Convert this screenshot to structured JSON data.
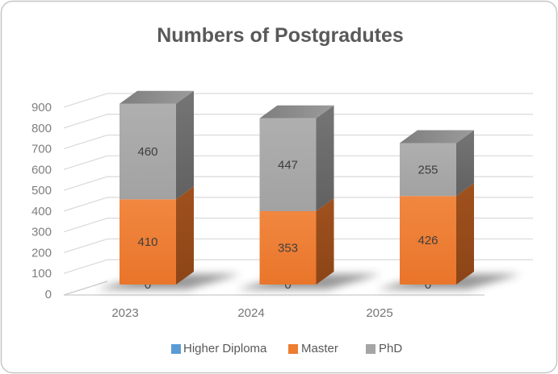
{
  "window": {
    "background": "#FFFFFF",
    "border_color": "#C6C6C6",
    "corner_radius": 14
  },
  "chart_data": {
    "type": "bar",
    "subtype": "stacked-column-3d",
    "title": "Numbers of Postgradutes",
    "title_color": "#595959",
    "categories": [
      "2023",
      "2024",
      "2025"
    ],
    "series": [
      {
        "name": "Higher Diploma",
        "color": "#5B9BD5",
        "front": [
          "#6FA8DC",
          "#4E8FCC"
        ],
        "side": [
          "#39689B",
          "#2F5780"
        ],
        "top": [
          "#4A7FB5",
          "#6FA8DC"
        ],
        "values": [
          0,
          0,
          0
        ]
      },
      {
        "name": "Master",
        "color": "#ED7D31",
        "front": [
          "#F18740",
          "#E9752A"
        ],
        "side": [
          "#A0511E",
          "#8C4517"
        ],
        "top": [
          "#B85A1D",
          "#D96F26"
        ],
        "values": [
          410,
          353,
          426
        ]
      },
      {
        "name": "PhD",
        "color": "#A5A5A5",
        "front": [
          "#AFAFAF",
          "#A2A2A2"
        ],
        "side": [
          "#757575",
          "#616161"
        ],
        "top": [
          "#7E7E7E",
          "#9B9B9B"
        ],
        "values": [
          460,
          447,
          255
        ]
      }
    ],
    "ylim": [
      0,
      900
    ],
    "ytick_step": 100,
    "yticks": [
      "0",
      "100",
      "200",
      "300",
      "400",
      "500",
      "600",
      "700",
      "800",
      "900"
    ],
    "ytick_color": "#7F7F7F",
    "category_label_color": "#757575",
    "data_labels": true,
    "data_label_color": "#3F3F3F",
    "grid": true,
    "gridline_color": "#D9D9D9",
    "axisline_color": "#C9C9C9",
    "legend_position": "bottom",
    "legend_text_color": "#595959"
  }
}
